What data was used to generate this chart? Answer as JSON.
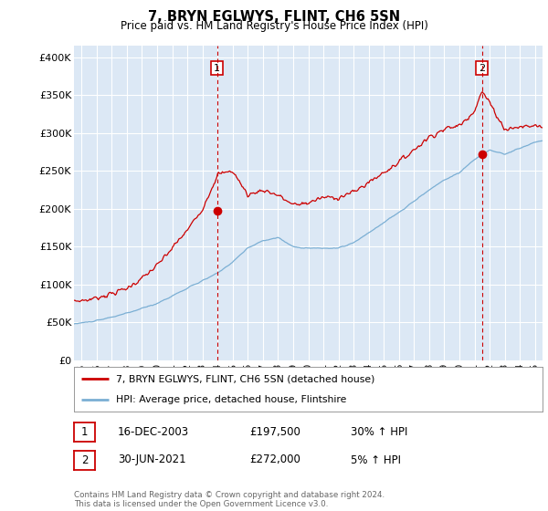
{
  "title": "7, BRYN EGLWYS, FLINT, CH6 5SN",
  "subtitle": "Price paid vs. HM Land Registry's House Price Index (HPI)",
  "ylabel_ticks": [
    "£0",
    "£50K",
    "£100K",
    "£150K",
    "£200K",
    "£250K",
    "£300K",
    "£350K",
    "£400K"
  ],
  "ytick_values": [
    0,
    50000,
    100000,
    150000,
    200000,
    250000,
    300000,
    350000,
    400000
  ],
  "ylim": [
    0,
    415000
  ],
  "xlim_start": 1994.5,
  "xlim_end": 2025.5,
  "hpi_color": "#7bafd4",
  "price_color": "#cc0000",
  "vline_color": "#cc0000",
  "marker1_date": 2003.96,
  "marker1_price": 197500,
  "marker1_label": "1",
  "marker2_date": 2021.5,
  "marker2_price": 272000,
  "marker2_label": "2",
  "legend_line1": "7, BRYN EGLWYS, FLINT, CH6 5SN (detached house)",
  "legend_line2": "HPI: Average price, detached house, Flintshire",
  "table_row1": [
    "1",
    "16-DEC-2003",
    "£197,500",
    "30% ↑ HPI"
  ],
  "table_row2": [
    "2",
    "30-JUN-2021",
    "£272,000",
    "5% ↑ HPI"
  ],
  "footer": "Contains HM Land Registry data © Crown copyright and database right 2024.\nThis data is licensed under the Open Government Licence v3.0.",
  "bg_color": "#ffffff",
  "plot_bg_color": "#dce8f5",
  "grid_color": "#ffffff",
  "xtick_years": [
    1995,
    1996,
    1997,
    1998,
    1999,
    2000,
    2001,
    2002,
    2003,
    2004,
    2005,
    2006,
    2007,
    2008,
    2009,
    2010,
    2011,
    2012,
    2013,
    2014,
    2015,
    2016,
    2017,
    2018,
    2019,
    2020,
    2021,
    2022,
    2023,
    2024,
    2025
  ]
}
